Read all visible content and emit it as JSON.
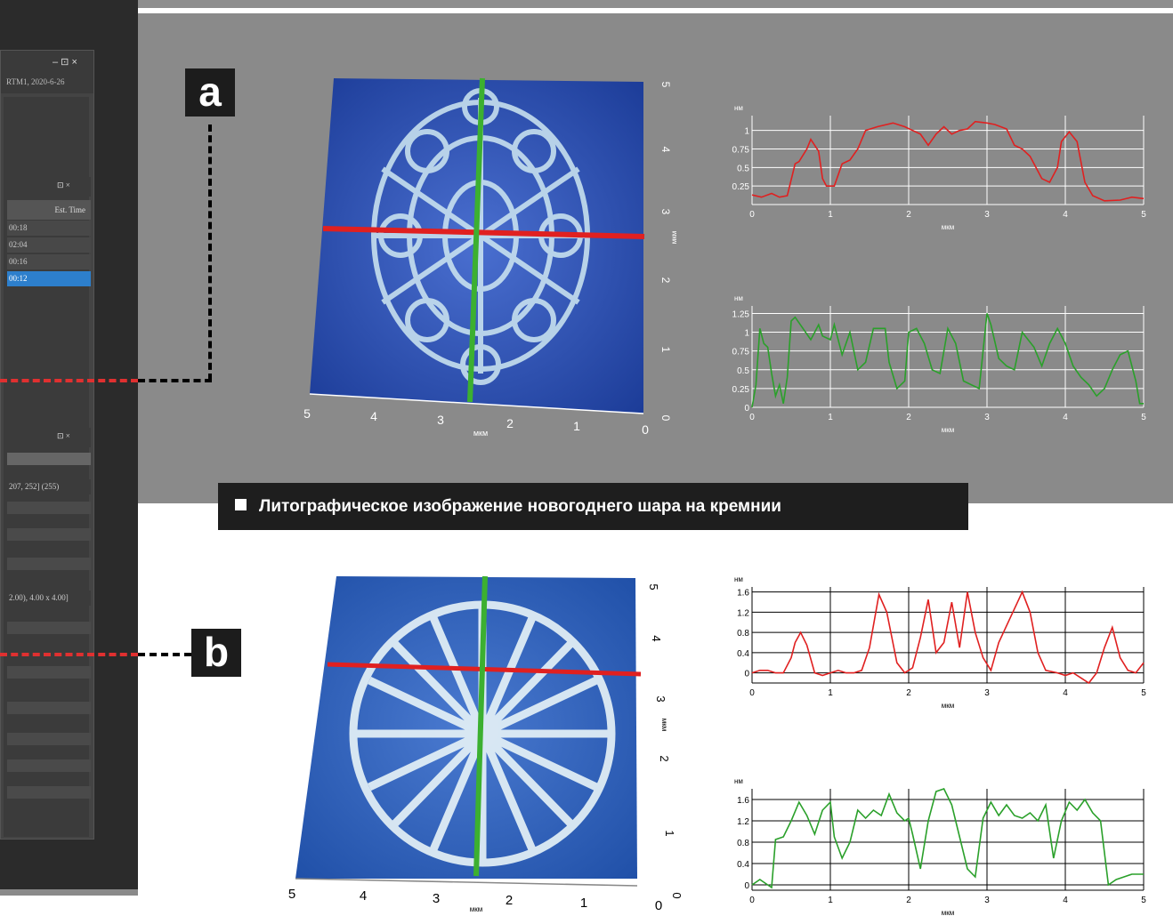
{
  "labels": {
    "a": "a",
    "b": "b"
  },
  "caption": "Литографическое изображение новогоднего шара на кремнии",
  "window": {
    "title_text": "RTM1, 2020-6-26",
    "title_controls": "– ⊡ ×",
    "panel_controls": "⊡ ×",
    "est_time_header": "Est. Time",
    "time_rows": [
      "00:18",
      "02:04",
      "00:16",
      "00:12"
    ],
    "info_row_1": "207, 252] (255)",
    "info_row_2": "2.00), 4.00 x 4.00]"
  },
  "units": {
    "nm": "нм",
    "um": "мкм"
  },
  "image_axes": {
    "x_ticks": [
      "5",
      "4",
      "3",
      "2",
      "1",
      "0"
    ],
    "y_ticks": [
      "0",
      "1",
      "2",
      "3",
      "4",
      "5"
    ]
  },
  "chart_data": [
    {
      "type": "line",
      "name": "profile-a-red",
      "color": "#e02020",
      "xlabel": "мкм",
      "ylabel": "нм",
      "xlim": [
        0,
        5
      ],
      "ylim": [
        0,
        1.2
      ],
      "yticks": [
        0.25,
        0.5,
        0.75,
        1
      ],
      "ytick_labels": [
        "0.25",
        "0.5",
        "0.75",
        "1"
      ],
      "xticks": [
        0,
        1,
        2,
        3,
        4,
        5
      ],
      "x": [
        0,
        0.12,
        0.25,
        0.35,
        0.45,
        0.55,
        0.6,
        0.7,
        0.75,
        0.85,
        0.9,
        0.95,
        1.05,
        1.15,
        1.25,
        1.35,
        1.45,
        1.6,
        1.8,
        1.95,
        2.05,
        2.15,
        2.25,
        2.35,
        2.45,
        2.55,
        2.65,
        2.75,
        2.85,
        3.0,
        3.1,
        3.25,
        3.35,
        3.45,
        3.55,
        3.7,
        3.8,
        3.9,
        3.95,
        4.05,
        4.15,
        4.25,
        4.35,
        4.5,
        4.7,
        4.85,
        5.0
      ],
      "y": [
        0.13,
        0.1,
        0.15,
        0.1,
        0.12,
        0.55,
        0.58,
        0.75,
        0.88,
        0.72,
        0.35,
        0.25,
        0.25,
        0.55,
        0.6,
        0.75,
        1.0,
        1.05,
        1.1,
        1.05,
        1.0,
        0.95,
        0.8,
        0.95,
        1.05,
        0.95,
        1.0,
        1.02,
        1.12,
        1.1,
        1.08,
        1.02,
        0.8,
        0.75,
        0.65,
        0.35,
        0.3,
        0.5,
        0.85,
        0.98,
        0.85,
        0.3,
        0.12,
        0.05,
        0.06,
        0.1,
        0.08
      ]
    },
    {
      "type": "line",
      "name": "profile-a-green",
      "color": "#2aa02a",
      "xlabel": "мкм",
      "ylabel": "нм",
      "xlim": [
        0,
        5
      ],
      "ylim": [
        0,
        1.35
      ],
      "yticks": [
        0,
        0.25,
        0.5,
        0.75,
        1,
        1.25
      ],
      "ytick_labels": [
        "0",
        "0.25",
        "0.5",
        "0.75",
        "1",
        "1.25"
      ],
      "xticks": [
        0,
        1,
        2,
        3,
        4,
        5
      ],
      "x": [
        0,
        0.05,
        0.1,
        0.15,
        0.2,
        0.25,
        0.3,
        0.35,
        0.4,
        0.45,
        0.5,
        0.55,
        0.65,
        0.75,
        0.8,
        0.85,
        0.9,
        1.0,
        1.05,
        1.15,
        1.25,
        1.35,
        1.45,
        1.55,
        1.7,
        1.75,
        1.85,
        1.95,
        2.0,
        2.1,
        2.2,
        2.3,
        2.4,
        2.5,
        2.6,
        2.7,
        2.8,
        2.9,
        3.0,
        3.05,
        3.15,
        3.25,
        3.35,
        3.45,
        3.6,
        3.7,
        3.8,
        3.9,
        4.0,
        4.1,
        4.2,
        4.3,
        4.4,
        4.5,
        4.6,
        4.7,
        4.8,
        4.9,
        4.95,
        5.0
      ],
      "y": [
        0.0,
        0.3,
        1.05,
        0.85,
        0.8,
        0.45,
        0.15,
        0.3,
        0.05,
        0.4,
        1.15,
        1.2,
        1.05,
        0.9,
        1.0,
        1.1,
        0.95,
        0.9,
        1.1,
        0.7,
        1.0,
        0.5,
        0.6,
        1.05,
        1.05,
        0.6,
        0.25,
        0.35,
        1.0,
        1.05,
        0.85,
        0.5,
        0.45,
        1.05,
        0.85,
        0.35,
        0.3,
        0.25,
        1.25,
        1.1,
        0.65,
        0.55,
        0.5,
        1.0,
        0.8,
        0.55,
        0.85,
        1.05,
        0.85,
        0.55,
        0.4,
        0.3,
        0.15,
        0.25,
        0.5,
        0.7,
        0.75,
        0.35,
        0.05,
        0.05
      ]
    },
    {
      "type": "line",
      "name": "profile-b-red",
      "color": "#e02020",
      "xlabel": "мкм",
      "ylabel": "нм",
      "xlim": [
        0,
        5
      ],
      "ylim": [
        -0.2,
        1.7
      ],
      "yticks": [
        0,
        0.4,
        0.8,
        1.2,
        1.6
      ],
      "ytick_labels": [
        "0",
        "0.4",
        "0.8",
        "1.2",
        "1.6"
      ],
      "xticks": [
        0,
        1,
        2,
        3,
        4,
        5
      ],
      "x": [
        0,
        0.1,
        0.2,
        0.3,
        0.4,
        0.5,
        0.55,
        0.62,
        0.7,
        0.8,
        0.9,
        1.0,
        1.1,
        1.2,
        1.3,
        1.4,
        1.5,
        1.62,
        1.72,
        1.85,
        1.95,
        2.05,
        2.15,
        2.25,
        2.35,
        2.45,
        2.55,
        2.65,
        2.75,
        2.85,
        2.95,
        3.05,
        3.15,
        3.3,
        3.45,
        3.55,
        3.65,
        3.75,
        3.9,
        4.0,
        4.1,
        4.2,
        4.3,
        4.4,
        4.5,
        4.6,
        4.7,
        4.8,
        4.9,
        5.0
      ],
      "y": [
        0.0,
        0.05,
        0.05,
        0.0,
        0.0,
        0.3,
        0.6,
        0.8,
        0.55,
        0.0,
        -0.05,
        0.0,
        0.05,
        0.0,
        0.0,
        0.05,
        0.5,
        1.55,
        1.2,
        0.2,
        0.0,
        0.1,
        0.7,
        1.45,
        0.4,
        0.6,
        1.4,
        0.5,
        1.6,
        0.8,
        0.3,
        0.05,
        0.6,
        1.1,
        1.6,
        1.2,
        0.4,
        0.05,
        0.0,
        -0.05,
        0.0,
        -0.1,
        -0.2,
        0.0,
        0.5,
        0.9,
        0.3,
        0.05,
        0.0,
        0.2
      ]
    },
    {
      "type": "line",
      "name": "profile-b-green",
      "color": "#2aa02a",
      "xlabel": "мкм",
      "ylabel": "нм",
      "xlim": [
        0,
        5
      ],
      "ylim": [
        -0.1,
        1.8
      ],
      "yticks": [
        0,
        0.4,
        0.8,
        1.2,
        1.6
      ],
      "ytick_labels": [
        "0",
        "0.4",
        "0.8",
        "1.2",
        "1.6"
      ],
      "xticks": [
        0,
        1,
        2,
        3,
        4,
        5
      ],
      "x": [
        0,
        0.1,
        0.2,
        0.25,
        0.3,
        0.4,
        0.5,
        0.6,
        0.7,
        0.8,
        0.9,
        1.0,
        1.05,
        1.15,
        1.25,
        1.35,
        1.45,
        1.55,
        1.65,
        1.75,
        1.85,
        1.95,
        2.0,
        2.05,
        2.15,
        2.25,
        2.35,
        2.45,
        2.55,
        2.65,
        2.75,
        2.85,
        2.95,
        3.05,
        3.15,
        3.25,
        3.35,
        3.45,
        3.55,
        3.65,
        3.75,
        3.85,
        3.95,
        4.05,
        4.15,
        4.25,
        4.35,
        4.45,
        4.55,
        4.65,
        4.75,
        4.85,
        5.0
      ],
      "y": [
        0.0,
        0.1,
        0.0,
        -0.05,
        0.85,
        0.9,
        1.2,
        1.55,
        1.3,
        0.95,
        1.4,
        1.55,
        0.9,
        0.5,
        0.8,
        1.4,
        1.25,
        1.4,
        1.3,
        1.7,
        1.35,
        1.2,
        1.25,
        0.95,
        0.3,
        1.2,
        1.75,
        1.8,
        1.5,
        0.9,
        0.3,
        0.15,
        1.25,
        1.55,
        1.3,
        1.5,
        1.3,
        1.25,
        1.35,
        1.2,
        1.5,
        0.5,
        1.2,
        1.55,
        1.4,
        1.6,
        1.35,
        1.2,
        0.0,
        0.1,
        0.15,
        0.2,
        0.2
      ]
    }
  ]
}
